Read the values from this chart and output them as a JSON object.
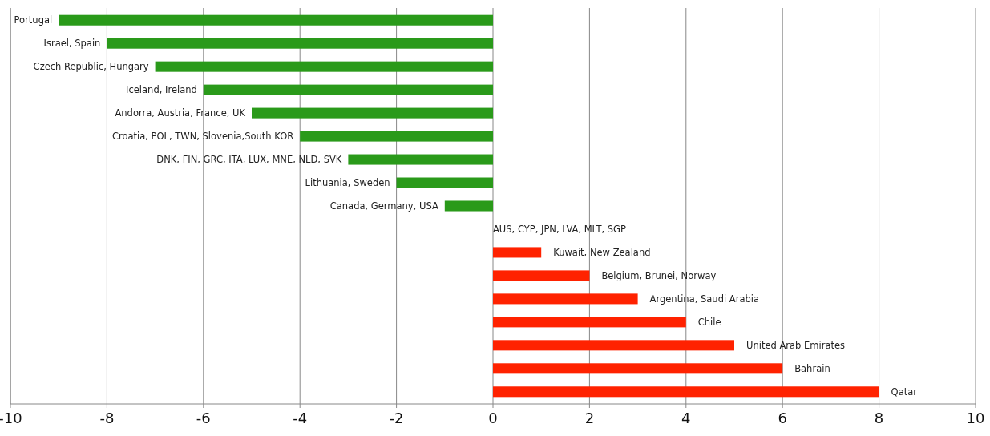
{
  "chart_data": {
    "type": "bar",
    "orientation": "horizontal",
    "categories": [
      "Portugal",
      "Israel, Spain",
      "Czech Republic, Hungary",
      "Iceland, Ireland",
      "Andorra, Austria, France, UK",
      "Croatia, POL, TWN, Slovenia,South KOR",
      "DNK, FIN, GRC, ITA, LUX, MNE, NLD, SVK",
      "Lithuania, Sweden",
      "Canada, Germany, USA",
      "AUS, CYP, JPN, LVA,  MLT, SGP",
      "Kuwait, New Zealand",
      "Belgium, Brunei, Norway",
      "Argentina, Saudi Arabia",
      "Chile",
      "United Arab Emirates",
      "Bahrain",
      "Qatar"
    ],
    "values": [
      -9,
      -8,
      -7,
      -6,
      -5,
      -4,
      -3,
      -2,
      -1,
      0,
      1,
      2,
      3,
      4,
      5,
      6,
      8
    ],
    "colors": [
      "#2a9a1a",
      "#2a9a1a",
      "#2a9a1a",
      "#2a9a1a",
      "#2a9a1a",
      "#2a9a1a",
      "#2a9a1a",
      "#2a9a1a",
      "#2a9a1a",
      "#ff2200",
      "#ff2200",
      "#ff2200",
      "#ff2200",
      "#ff2200",
      "#ff2200",
      "#ff2200",
      "#ff2200"
    ],
    "xlim": [
      -10,
      10
    ],
    "xticks": [
      -10,
      -8,
      -6,
      -4,
      -2,
      0,
      2,
      4,
      6,
      8,
      10
    ],
    "grid": "x"
  }
}
